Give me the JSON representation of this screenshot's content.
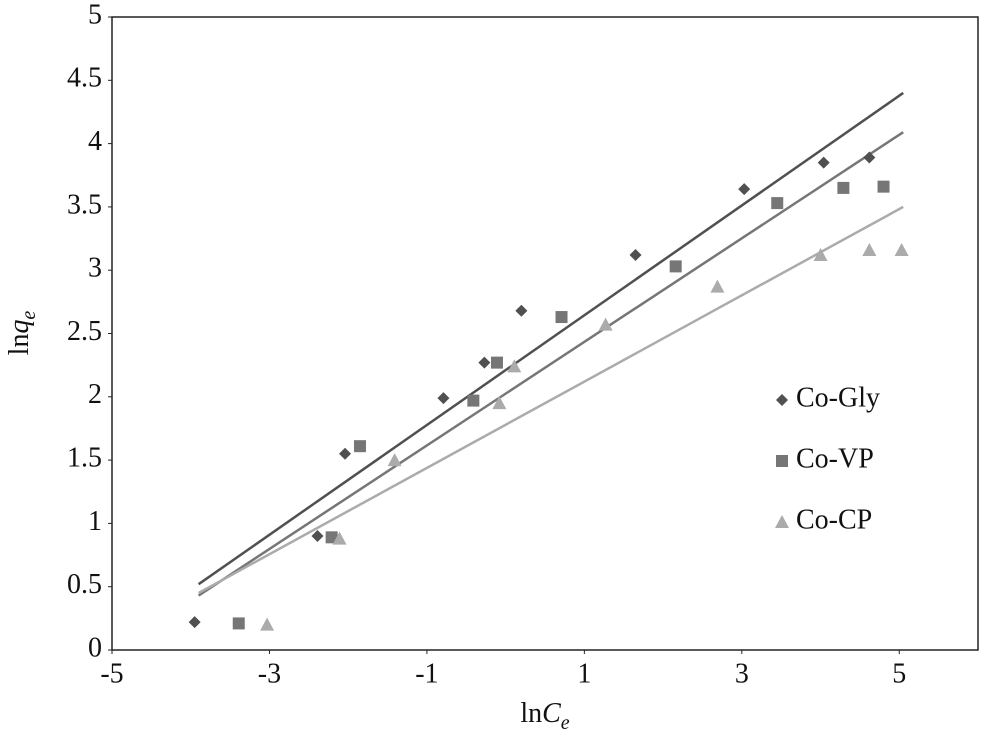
{
  "chart_data": {
    "type": "scatter",
    "xlabel": [
      "ln",
      "C",
      "e"
    ],
    "ylabel": [
      "ln",
      "q",
      "e"
    ],
    "xlim": [
      -5,
      6
    ],
    "ylim": [
      0,
      5
    ],
    "xticks": [
      -5,
      -3,
      -1,
      1,
      3,
      5
    ],
    "yticks": [
      0,
      0.5,
      1,
      1.5,
      2,
      2.5,
      3,
      3.5,
      4,
      4.5,
      5
    ],
    "legend": "right",
    "series": [
      {
        "name": "Co-Gly",
        "color": "#505050",
        "marker": "diamond",
        "x": [
          -3.95,
          -2.39,
          -2.04,
          -0.79,
          -0.27,
          0.2,
          1.65,
          3.03,
          4.04,
          4.62
        ],
        "values": [
          0.22,
          0.9,
          1.55,
          1.99,
          2.27,
          2.68,
          3.12,
          3.64,
          3.85,
          3.89
        ],
        "fit": {
          "x": [
            -3.9,
            5.05
          ],
          "y": [
            0.52,
            4.4
          ]
        }
      },
      {
        "name": "Co-VP",
        "color": "#767676",
        "marker": "square",
        "x": [
          -3.39,
          -2.21,
          -1.85,
          -0.41,
          -0.11,
          0.71,
          2.16,
          3.45,
          4.29,
          4.8
        ],
        "values": [
          0.21,
          0.89,
          1.61,
          1.97,
          2.27,
          2.63,
          3.03,
          3.53,
          3.65,
          3.66
        ],
        "fit": {
          "x": [
            -3.9,
            5.05
          ],
          "y": [
            0.43,
            4.09
          ]
        }
      },
      {
        "name": "Co-CP",
        "color": "#ababab",
        "marker": "triangle",
        "x": [
          -3.03,
          -2.11,
          -1.41,
          -0.08,
          0.11,
          1.27,
          2.69,
          4.0,
          4.62,
          5.03
        ],
        "values": [
          0.2,
          0.88,
          1.5,
          1.95,
          2.24,
          2.57,
          2.87,
          3.12,
          3.16,
          3.16
        ],
        "fit": {
          "x": [
            -3.9,
            5.05
          ],
          "y": [
            0.45,
            3.5
          ]
        }
      }
    ]
  }
}
